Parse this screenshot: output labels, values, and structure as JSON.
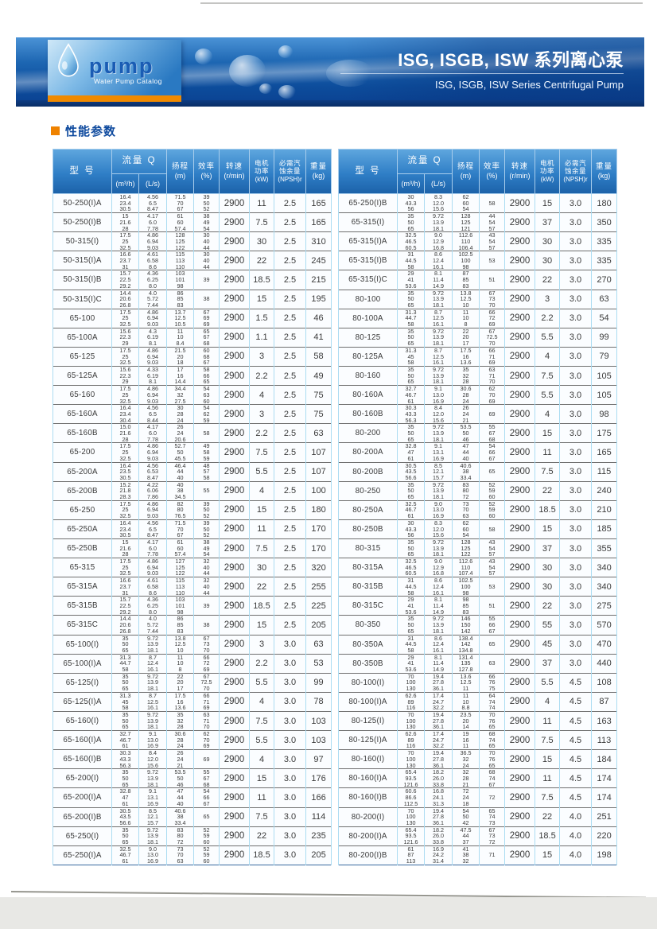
{
  "header": {
    "logo_text": "pump",
    "logo_subtext": "Water Pump Catalog",
    "title_zh": "ISG, ISGB, ISW 系列离心泵",
    "title_en": "ISG, ISGB, ISW Series Centrifugal Pump"
  },
  "section_title": "性能参数",
  "colors": {
    "banner_blue": "#1d66b2",
    "navy_strip": "#0a2e66",
    "logo_orange": "#f08a00",
    "section_orange": "#ef8200",
    "section_blue": "#0e4a9e",
    "table_header_blue": "#2f7ec6",
    "grid_light_blue": "#abdcf2"
  },
  "columns": {
    "model": "型  号",
    "flow": "流量 Q",
    "flow_m3h": "(m³/h)",
    "flow_ls": "(L/s)",
    "head_line1": "扬程",
    "head_line2": "(m)",
    "eff_line1": "效率",
    "eff_line2": "(%)",
    "speed_line1": "转速",
    "speed_line2": "(r/min)",
    "power_line1": "电机",
    "power_line2": "功率",
    "power_line3": "(kW)",
    "npsh_line1": "必需汽",
    "npsh_line2": "蚀余量",
    "npsh_line3": "(NPSH)r",
    "weight_line1": "重量",
    "weight_line2": "(kg)"
  },
  "tables": [
    {
      "rows": [
        [
          "50-250(I)A",
          "16.4\n23.4\n30.5",
          "4.56\n6.5\n8.47",
          "71.5\n70\n67",
          "39\n50\n52",
          "2900",
          "11",
          "2.5",
          "165"
        ],
        [
          "50-250(I)B",
          "15\n21.6\n28",
          "4.17\n6.0\n7.78",
          "61\n60\n57.4",
          "38\n49\n54",
          "2900",
          "7.5",
          "2.5",
          "165"
        ],
        [
          "50-315(I)",
          "17.5\n25\n32.5",
          "4.86\n6.94\n9.03",
          "128\n125\n122",
          "30\n40\n44",
          "2900",
          "30",
          "2.5",
          "310"
        ],
        [
          "50-315(I)A",
          "16.6\n23.7\n31",
          "4.61\n6.58\n8.6",
          "115\n113\n110",
          "30\n40\n44",
          "2900",
          "22",
          "2.5",
          "245"
        ],
        [
          "50-315(I)B",
          "15.7\n22.5\n29.2",
          "4.36\n6.25\n8.0",
          "103\n101\n98",
          "39",
          "2900",
          "18.5",
          "2.5",
          "215"
        ],
        [
          "50-315(I)C",
          "14.4\n20.6\n26.8",
          "4.0\n5.72\n7.44",
          "86\n85\n83",
          "38",
          "2900",
          "15",
          "2.5",
          "195"
        ],
        [
          "65-100",
          "17.5\n25\n32.5",
          "4.86\n6.94\n9.03",
          "13.7\n12.5\n10.5",
          "67\n69\n69",
          "2900",
          "1.5",
          "2.5",
          "46"
        ],
        [
          "65-100A",
          "15.6\n22.3\n29",
          "4.3\n6.19\n8.1",
          "11\n10\n8.4",
          "65\n67\n68",
          "2900",
          "1.1",
          "2.5",
          "41"
        ],
        [
          "65-125",
          "17.5\n25\n32.5",
          "4.86\n6.94\n9.03",
          "21.5\n20\n18",
          "60\n68\n67",
          "2900",
          "3",
          "2.5",
          "58"
        ],
        [
          "65-125A",
          "15.6\n22.3\n29",
          "4.33\n6.19\n8.1",
          "17\n16\n14.4",
          "58\n66\n65",
          "2900",
          "2.2",
          "2.5",
          "49"
        ],
        [
          "65-160",
          "17.5\n25\n32.5",
          "4.86\n6.94\n9.03",
          "34.4\n32\n27.5",
          "54\n63\n60",
          "2900",
          "4",
          "2.5",
          "75"
        ],
        [
          "65-160A",
          "16.4\n23.4\n30.4",
          "4.56\n6.5\n8.44",
          "30\n28\n24",
          "54\n62\n59",
          "2900",
          "3",
          "2.5",
          "75"
        ],
        [
          "65-160B",
          "15.0\n21.6\n28",
          "4.17\n6.0\n7.78",
          "26\n24\n20.6",
          "58",
          "2900",
          "2.2",
          "2.5",
          "63"
        ],
        [
          "65-200",
          "17.5\n25\n32.5",
          "4.86\n6.94\n9.03",
          "52.7\n50\n45.5",
          "49\n58\n59",
          "2900",
          "7.5",
          "2.5",
          "107"
        ],
        [
          "65-200A",
          "16.4\n23.5\n30.5",
          "4.56\n6.53\n8.47",
          "46.4\n44\n40",
          "48\n57\n58",
          "2900",
          "5.5",
          "2.5",
          "107"
        ],
        [
          "65-200B",
          "15.2\n21.8\n28.3",
          "4.22\n6.06\n7.86",
          "40\n38\n34.5",
          "55",
          "2900",
          "4",
          "2.5",
          "100"
        ],
        [
          "65-250",
          "17.5\n25\n32.5",
          "4.86\n6.94\n9.03",
          "82\n80\n76.5",
          "39\n50\n52",
          "2900",
          "15",
          "2.5",
          "180"
        ],
        [
          "65-250A",
          "16.4\n23.4\n30.5",
          "4.56\n6.5\n8.47",
          "71.5\n70\n67",
          "39\n50\n52",
          "2900",
          "11",
          "2.5",
          "170"
        ],
        [
          "65-250B",
          "15\n21.6\n28",
          "4.17\n6.0\n7.78",
          "61\n60\n57.4",
          "38\n49\n54",
          "2900",
          "7.5",
          "2.5",
          "170"
        ],
        [
          "65-315",
          "17.5\n25\n32.5",
          "4.86\n6.94\n9.03",
          "127\n125\n122",
          "32\n40\n44",
          "2900",
          "30",
          "2.5",
          "320"
        ],
        [
          "65-315A",
          "16.6\n23.7\n31",
          "4.61\n6.58\n8.6",
          "115\n113\n110",
          "32\n40\n44",
          "2900",
          "22",
          "2.5",
          "255"
        ],
        [
          "65-315B",
          "15.7\n22.5\n29.2",
          "4.36\n6.25\n8.0",
          "103\n101\n98",
          "39",
          "2900",
          "18.5",
          "2.5",
          "225"
        ],
        [
          "65-315C",
          "14.4\n20.6\n26.8",
          "4.0\n5.72\n7.44",
          "86\n85\n83",
          "38",
          "2900",
          "15",
          "2.5",
          "205"
        ],
        [
          "65-100(I)",
          "35\n50\n65",
          "9.72\n13.9\n18.1",
          "13.8\n12.5\n10",
          "67\n73\n70",
          "2900",
          "3",
          "3.0",
          "63"
        ],
        [
          "65-100(I)A",
          "31.3\n44.7\n58",
          "8.7\n12.4\n16.1",
          "11\n10\n8",
          "66\n72\n69",
          "2900",
          "2.2",
          "3.0",
          "53"
        ],
        [
          "65-125(I)",
          "35\n50\n65",
          "9.72\n13.9\n18.1",
          "22\n20\n17",
          "67\n72.5\n70",
          "2900",
          "5.5",
          "3.0",
          "99"
        ],
        [
          "65-125(I)A",
          "31.3\n45\n58",
          "8.7\n12.5\n16.1",
          "17.5\n16\n13.6",
          "66\n71\n69",
          "2900",
          "4",
          "3.0",
          "78"
        ],
        [
          "65-160(I)",
          "35\n50\n65",
          "9.72\n13.9\n18.1",
          "35\n32\n28",
          "63\n71\n70",
          "2900",
          "7.5",
          "3.0",
          "103"
        ],
        [
          "65-160(I)A",
          "32.7\n46.7\n61",
          "9.1\n13.0\n16.9",
          "30.6\n28\n24",
          "62\n70\n69",
          "2900",
          "5.5",
          "3.0",
          "103"
        ],
        [
          "65-160(I)B",
          "30.3\n43.3\n56.3",
          "8.4\n12.0\n15.6",
          "26\n24\n21",
          "69",
          "2900",
          "4",
          "3.0",
          "97"
        ],
        [
          "65-200(I)",
          "35\n50\n65",
          "9.72\n13.9\n18.1",
          "53.5\n50\n46",
          "55\n67\n68",
          "2900",
          "15",
          "3.0",
          "176"
        ],
        [
          "65-200(I)A",
          "32.8\n47\n61",
          "9.1\n13.1\n16.9",
          "47\n44\n40",
          "54\n66\n67",
          "2900",
          "11",
          "3.0",
          "166"
        ],
        [
          "65-200(I)B",
          "30.5\n43.5\n56.6",
          "8.5\n12.1\n15.7",
          "40.6\n38\n33.4",
          "65",
          "2900",
          "7.5",
          "3.0",
          "114"
        ],
        [
          "65-250(I)",
          "35\n50\n65",
          "9.72\n13.9\n18.1",
          "83\n80\n72",
          "52\n59\n60",
          "2900",
          "22",
          "3.0",
          "235"
        ],
        [
          "65-250(I)A",
          "32.5\n46.7\n61",
          "9.0\n13.0\n16.9",
          "73\n70\n63",
          "52\n59\n60",
          "2900",
          "18.5",
          "3.0",
          "205"
        ]
      ]
    },
    {
      "rows": [
        [
          "65-250(I)B",
          "30\n43.3\n56",
          "8.3\n12.0\n15.6",
          "62\n60\n54",
          "58",
          "2900",
          "15",
          "3.0",
          "180"
        ],
        [
          "65-315(I)",
          "35\n50\n65",
          "9.72\n13.9\n18.1",
          "128\n125\n121",
          "44\n54\n57",
          "2900",
          "37",
          "3.0",
          "350"
        ],
        [
          "65-315(I)A",
          "32.5\n46.5\n60.5",
          "9.0\n12.9\n16.8",
          "112.6\n110\n106.4",
          "43\n54\n57",
          "2900",
          "30",
          "3.0",
          "335"
        ],
        [
          "65-315(I)B",
          "31\n44.5\n58",
          "8.6\n12.4\n16.1",
          "102.5\n100\n98",
          "53",
          "2900",
          "30",
          "3.0",
          "335"
        ],
        [
          "65-315(I)C",
          "29\n41\n53.6",
          "8.1\n11.4\n14.9",
          "87\n85\n83",
          "51",
          "2900",
          "22",
          "3.0",
          "270"
        ],
        [
          "80-100",
          "35\n50\n65",
          "9.72\n13.9\n18.1",
          "13.8\n12.5\n10",
          "67\n73\n70",
          "2900",
          "3",
          "3.0",
          "63"
        ],
        [
          "80-100A",
          "31.3\n44.7\n58",
          "8.7\n12.5\n16.1",
          "11\n10\n8",
          "66\n72\n69",
          "2900",
          "2.2",
          "3.0",
          "54"
        ],
        [
          "80-125",
          "35\n50\n65",
          "9.72\n13.9\n18.1",
          "22\n20\n17",
          "67\n72.5\n70",
          "2900",
          "5.5",
          "3.0",
          "99"
        ],
        [
          "80-125A",
          "31.3\n45\n58",
          "8.7\n12.5\n16.1",
          "17.5\n16\n13.6",
          "66\n71\n69",
          "2900",
          "4",
          "3.0",
          "79"
        ],
        [
          "80-160",
          "35\n50\n65",
          "9.72\n13.9\n18.1",
          "35\n32\n28",
          "63\n71\n70",
          "2900",
          "7.5",
          "3.0",
          "105"
        ],
        [
          "80-160A",
          "32.7\n46.7\n61",
          "9.1\n13.0\n16.9",
          "30.6\n28\n24",
          "62\n70\n69",
          "2900",
          "5.5",
          "3.0",
          "105"
        ],
        [
          "80-160B",
          "30.3\n43.3\n56.3",
          "8.4\n12.0\n15.6",
          "26\n24\n21",
          "69",
          "2900",
          "4",
          "3.0",
          "98"
        ],
        [
          "80-200",
          "35\n50\n65",
          "9.72\n13.9\n18.1",
          "53.5\n50\n46",
          "55\n67\n68",
          "2900",
          "15",
          "3.0",
          "175"
        ],
        [
          "80-200A",
          "32.8\n47\n61",
          "9.1\n13.1\n16.9",
          "47\n44\n40",
          "54\n66\n67",
          "2900",
          "11",
          "3.0",
          "165"
        ],
        [
          "80-200B",
          "30.5\n43.5\n56.6",
          "8.5\n12.1\n15.7",
          "40.6\n38\n33.4",
          "65",
          "2900",
          "7.5",
          "3.0",
          "115"
        ],
        [
          "80-250",
          "35\n50\n65",
          "9.72\n13.9\n18.1",
          "83\n80\n72",
          "52\n59\n60",
          "2900",
          "22",
          "3.0",
          "240"
        ],
        [
          "80-250A",
          "32.5\n46.7\n61",
          "9.0\n13.0\n16.9",
          "73\n70\n63",
          "52\n59\n60",
          "2900",
          "18.5",
          "3.0",
          "210"
        ],
        [
          "80-250B",
          "30\n43.3\n56",
          "8.3\n12.0\n15.6",
          "62\n60\n54",
          "58",
          "2900",
          "15",
          "3.0",
          "185"
        ],
        [
          "80-315",
          "35\n50\n65",
          "9.72\n13.9\n18.1",
          "128\n125\n122",
          "43\n54\n57",
          "2900",
          "37",
          "3.0",
          "355"
        ],
        [
          "80-315A",
          "32.5\n46.5\n60.5",
          "9.0\n12.9\n16.8",
          "112.6\n110\n107.4",
          "43\n54\n57",
          "2900",
          "30",
          "3.0",
          "340"
        ],
        [
          "80-315B",
          "31\n44.5\n58",
          "8.6\n12.4\n16.1",
          "102.5\n100\n98",
          "53",
          "2900",
          "30",
          "3.0",
          "340"
        ],
        [
          "80-315C",
          "29\n41\n53.6",
          "8.1\n11.4\n14.9",
          "98\n85\n83",
          "51",
          "2900",
          "22",
          "3.0",
          "275"
        ],
        [
          "80-350",
          "35\n50\n65",
          "9.72\n13.9\n18.1",
          "146\n150\n142",
          "55\n66\n67",
          "2900",
          "55",
          "3.0",
          "570"
        ],
        [
          "80-350A",
          "31\n44.5\n58",
          "8.6\n12.4\n16.1",
          "138.4\n142\n134.8",
          "65",
          "2900",
          "45",
          "3.0",
          "470"
        ],
        [
          "80-350B",
          "29\n41\n53.6",
          "8.1\n11.4\n14.9",
          "131.4\n135\n127.8",
          "63",
          "2900",
          "37",
          "3.0",
          "440"
        ],
        [
          "80-100(I)",
          "70\n100\n130",
          "19.4\n27.8\n36.1",
          "13.6\n12.5\n11",
          "66\n76\n75",
          "2900",
          "5.5",
          "4.5",
          "108"
        ],
        [
          "80-100(I)A",
          "62.6\n89\n116",
          "17.4\n24.7\n32.2",
          "11\n10\n8.8",
          "64\n74\n74",
          "2900",
          "4",
          "4.5",
          "87"
        ],
        [
          "80-125(I)",
          "70\n100\n130",
          "19.4\n27.8\n36.1",
          "23.5\n20\n14",
          "70\n76\n65",
          "2900",
          "11",
          "4.5",
          "163"
        ],
        [
          "80-125(I)A",
          "62.6\n89\n116",
          "17.4\n24.7\n32.2",
          "19\n16\n11",
          "68\n74\n65",
          "2900",
          "7.5",
          "4.5",
          "113"
        ],
        [
          "80-160(I)",
          "70\n100\n130",
          "19.4\n27.8\n36.1",
          "36.5\n32\n24",
          "70\n76\n65",
          "2900",
          "15",
          "4.5",
          "184"
        ],
        [
          "80-160(I)A",
          "65.4\n93.5\n121.6",
          "18.2\n26.0\n33.8",
          "32\n28\n21",
          "68\n74\n67",
          "2900",
          "11",
          "4.5",
          "174"
        ],
        [
          "80-160(I)B",
          "60.6\n86.6\n112.5",
          "16.8\n24.1\n31.3",
          "72\n24\n18",
          "72",
          "2900",
          "7.5",
          "4.5",
          "174"
        ],
        [
          "80-200(I)",
          "70\n100\n130",
          "19.4\n27.8\n36.1",
          "54\n50\n42",
          "65\n74\n73",
          "2900",
          "22",
          "4.0",
          "251"
        ],
        [
          "80-200(I)A",
          "65.4\n93.5\n121.6",
          "18.2\n26.0\n33.8",
          "47.5\n44\n37",
          "67\n73\n72",
          "2900",
          "18.5",
          "4.0",
          "220"
        ],
        [
          "80-200(I)B",
          "61\n87\n113",
          "16.9\n24.2\n31.4",
          "41\n38\n32",
          "71",
          "2900",
          "15",
          "4.0",
          "198"
        ]
      ]
    }
  ]
}
